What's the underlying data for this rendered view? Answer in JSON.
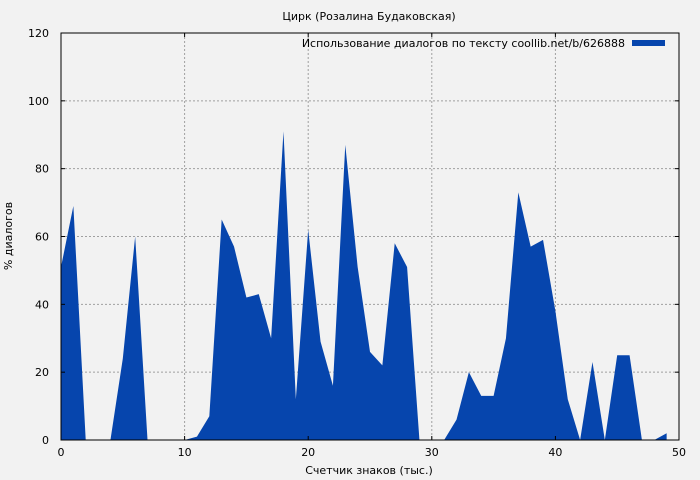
{
  "chart_data": {
    "type": "area",
    "title": "Цирк (Розалина Будаковская)",
    "xlabel": "Счетчик знаков (тыс.)",
    "ylabel": "% диалогов",
    "xlim": [
      0,
      50
    ],
    "ylim": [
      0,
      120
    ],
    "xticks": [
      0,
      10,
      20,
      30,
      40,
      50
    ],
    "yticks": [
      0,
      20,
      40,
      60,
      80,
      100,
      120
    ],
    "grid": true,
    "legend_position": "top-right",
    "series": [
      {
        "name": "Использование диалогов по тексту coollib.net/b/626888",
        "color": "#0645ad",
        "x": [
          0,
          1,
          2,
          3,
          4,
          5,
          6,
          7,
          8,
          9,
          10,
          11,
          12,
          13,
          14,
          15,
          16,
          17,
          18,
          19,
          20,
          21,
          22,
          23,
          24,
          25,
          26,
          27,
          28,
          29,
          30,
          31,
          32,
          33,
          34,
          35,
          36,
          37,
          38,
          39,
          40,
          41,
          42,
          43,
          44,
          45,
          46,
          47,
          48,
          49
        ],
        "y": [
          51,
          69,
          0,
          0,
          0,
          24,
          60,
          0,
          0,
          0,
          0,
          1,
          7,
          65,
          57,
          42,
          43,
          30,
          91,
          12,
          62,
          29,
          16,
          87,
          51,
          26,
          22,
          58,
          51,
          0,
          0,
          0,
          6,
          20,
          13,
          13,
          30,
          73,
          57,
          59,
          38,
          12,
          0,
          23,
          0,
          25,
          25,
          0,
          0,
          2
        ]
      }
    ]
  }
}
